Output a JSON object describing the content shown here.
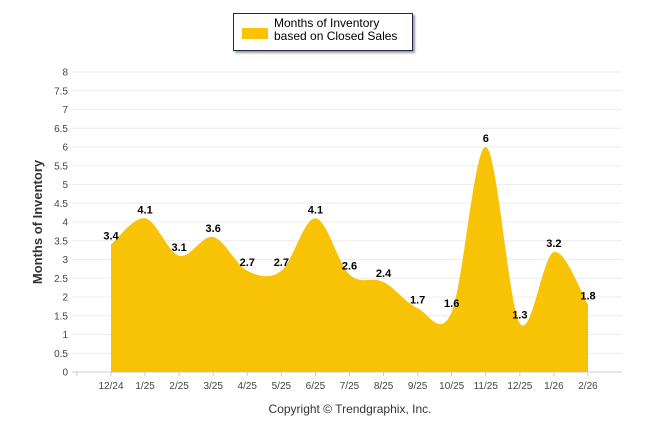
{
  "chart_data": {
    "type": "area",
    "title": "",
    "legend": [
      "Months of Inventory based on Closed Sales"
    ],
    "legend_position": "top-center",
    "xlabel": "",
    "ylabel": "Months of Inventory",
    "ylim": [
      0,
      8
    ],
    "yticks": [
      "0",
      "0.5",
      "1",
      "1.5",
      "2",
      "2.5",
      "3",
      "3.5",
      "4",
      "4.5",
      "5",
      "5.5",
      "6",
      "6.5",
      "7",
      "7.5",
      "8"
    ],
    "categories": [
      "12/24",
      "1/25",
      "2/25",
      "3/25",
      "4/25",
      "5/25",
      "6/25",
      "7/25",
      "8/25",
      "9/25",
      "10/25",
      "11/25",
      "12/25",
      "1/26",
      "2/26"
    ],
    "series": [
      {
        "name": "Months of Inventory based on Closed Sales",
        "values": [
          3.4,
          4.1,
          3.1,
          3.6,
          2.7,
          2.7,
          4.1,
          2.6,
          2.4,
          1.7,
          1.6,
          6,
          1.3,
          3.2,
          1.8
        ],
        "color": "#f8c304"
      }
    ],
    "grid": true
  },
  "footer": "Copyright © Trendgraphix, Inc."
}
